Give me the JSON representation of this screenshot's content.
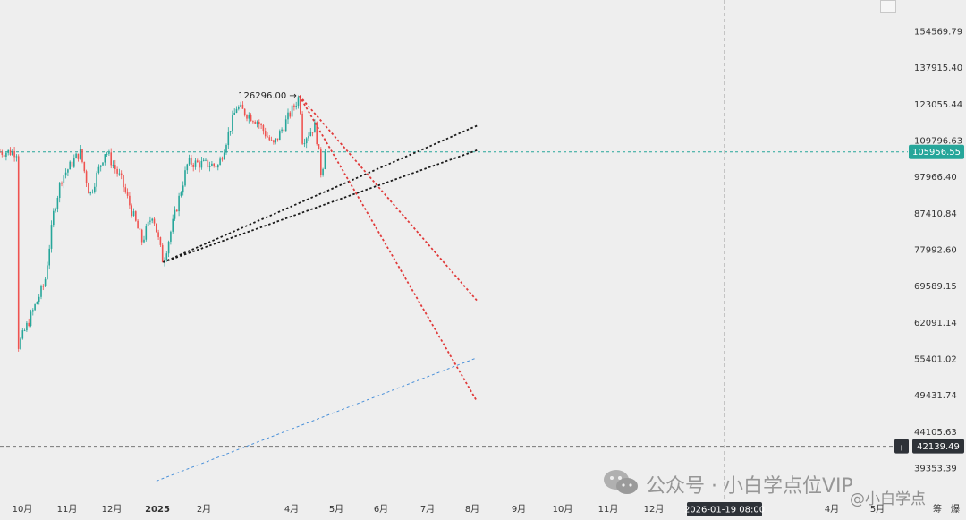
{
  "chart_data": {
    "type": "candlestick",
    "y_scale": "log",
    "price_labels": [
      "154569.79",
      "137915.40",
      "123055.44",
      "109796.63",
      "97966.40",
      "87410.84",
      "77992.60",
      "69589.15",
      "62091.14",
      "55401.02",
      "49431.74",
      "44105.63",
      "39353.39"
    ],
    "time_labels": [
      "10月",
      "11月",
      "12月",
      "2025",
      "2月",
      "4月",
      "5月",
      "6月",
      "7月",
      "8月",
      "9月",
      "10月",
      "11月",
      "12月",
      "4月",
      "5月"
    ],
    "current_price": "105956.55",
    "crosshair_price": "42139.49",
    "crosshair_time": "2026-01-19 08:00",
    "high_annotation": "126296.00 →",
    "ohlc_anchors": [
      {
        "date": "2024-09-25",
        "price": 57500
      },
      {
        "date": "2024-10-10",
        "price": 62500
      },
      {
        "date": "2024-10-31",
        "price": 70500
      },
      {
        "date": "2024-11-12",
        "price": 88000
      },
      {
        "date": "2024-11-22",
        "price": 97500
      },
      {
        "date": "2024-12-17",
        "price": 106000
      },
      {
        "date": "2024-12-30",
        "price": 92500
      },
      {
        "date": "2025-01-20",
        "price": 106500
      },
      {
        "date": "2025-02-10",
        "price": 97000
      },
      {
        "date": "2025-03-10",
        "price": 80000
      },
      {
        "date": "2025-03-24",
        "price": 87500
      },
      {
        "date": "2025-04-07",
        "price": 75000
      },
      {
        "date": "2025-05-10",
        "price": 102500
      },
      {
        "date": "2025-06-20",
        "price": 101500
      },
      {
        "date": "2025-07-14",
        "price": 122000
      },
      {
        "date": "2025-08-10",
        "price": 117000
      },
      {
        "date": "2025-09-01",
        "price": 108000
      },
      {
        "date": "2025-10-06",
        "price": 126296
      },
      {
        "date": "2025-10-10",
        "price": 110000
      },
      {
        "date": "2025-10-27",
        "price": 115000
      },
      {
        "date": "2025-11-04",
        "price": 99000
      },
      {
        "date": "2025-11-10",
        "price": 105956.55
      }
    ],
    "trend_lines": [
      {
        "style": "dotted",
        "color": "#1a1a1a",
        "from": {
          "date": "2025-04-07",
          "price": 75000
        },
        "to": {
          "date": "2026-05-31",
          "price": 115000
        }
      },
      {
        "style": "dotted",
        "color": "#1a1a1a",
        "from": {
          "date": "2025-04-07",
          "price": 75000
        },
        "to": {
          "date": "2026-05-31",
          "price": 106500
        }
      },
      {
        "style": "dotted",
        "color": "#e03a3a",
        "from": {
          "date": "2025-10-06",
          "price": 126296
        },
        "to": {
          "date": "2026-05-31",
          "price": 66500
        }
      },
      {
        "style": "dotted",
        "color": "#e03a3a",
        "from": {
          "date": "2025-10-06",
          "price": 126296
        },
        "to": {
          "date": "2026-05-31",
          "price": 48500
        }
      },
      {
        "style": "dashed",
        "color": "#4a90d9",
        "from": {
          "date": "2025-03-29",
          "price": 37800
        },
        "to": {
          "date": "2026-05-31",
          "price": 55600
        }
      }
    ],
    "colors": {
      "up": "#26a69a",
      "down": "#ef5350",
      "accent": "#26a69a",
      "crosshair": "#333333"
    }
  },
  "watermark": {
    "text1": "公众号 · 小白学点位VIP",
    "text2": "@小白学点"
  },
  "toolbar": {
    "btn_a": "筹",
    "btn_b": "爆"
  }
}
